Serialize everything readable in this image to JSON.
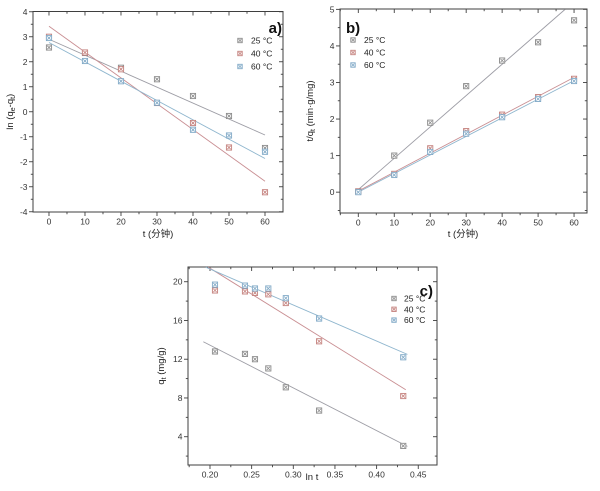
{
  "style": {
    "background": "#ffffff",
    "axis_color": "#3f3f3f",
    "tick_label_color": "#333333",
    "label_color": "#222222"
  },
  "chart_data": [
    {
      "id": "a",
      "panel_label": "a)",
      "type": "scatter",
      "xlabel": "t (分钟)",
      "ylabel_parts": [
        {
          "t": "ln (q"
        },
        {
          "t": "e",
          "sub": true
        },
        {
          "t": "-q"
        },
        {
          "t": "t",
          "sub": true
        },
        {
          "t": ")"
        }
      ],
      "xlim": [
        -4.44,
        65.0
      ],
      "ylim": [
        -4.01,
        4.01
      ],
      "xticks": {
        "values": [
          0,
          10,
          20,
          30,
          40,
          50,
          60
        ],
        "labels": [
          "0",
          "10",
          "20",
          "30",
          "40",
          "50",
          "60"
        ]
      },
      "yticks": {
        "values": [
          -4,
          -3,
          -2,
          -1,
          0,
          1,
          2,
          3,
          4
        ],
        "labels": [
          "-4",
          "-3",
          "-2",
          "-1",
          "0",
          "1",
          "2",
          "3",
          "4"
        ]
      },
      "legend_position": "top-right",
      "series": [
        {
          "name": "25 °C",
          "marker_color": "#8a8a8a",
          "line_color": "#9d9da5",
          "points": [
            [
              0,
              2.57
            ],
            [
              10,
              2.35
            ],
            [
              20,
              1.76
            ],
            [
              30,
              1.3
            ],
            [
              40,
              0.63
            ],
            [
              50,
              -0.17
            ],
            [
              60,
              -1.45
            ]
          ],
          "fit": [
            [
              0,
              2.9
            ],
            [
              60,
              -0.93
            ]
          ]
        },
        {
          "name": "40 °C",
          "marker_color": "#c4807c",
          "line_color": "#c98f93",
          "points": [
            [
              0,
              3.0
            ],
            [
              10,
              2.37
            ],
            [
              20,
              1.7
            ],
            [
              30,
              0.35
            ],
            [
              40,
              -0.45
            ],
            [
              50,
              -1.43
            ],
            [
              60,
              -3.22
            ]
          ],
          "fit": [
            [
              0,
              3.42
            ],
            [
              60,
              -2.78
            ]
          ]
        },
        {
          "name": "60 °C",
          "marker_color": "#7fa8c6",
          "line_color": "#8fb6ce",
          "points": [
            [
              0,
              2.95
            ],
            [
              10,
              2.03
            ],
            [
              20,
              1.22
            ],
            [
              30,
              0.36
            ],
            [
              40,
              -0.72
            ],
            [
              50,
              -0.95
            ],
            [
              60,
              -1.6
            ]
          ],
          "fit": [
            [
              0,
              2.77
            ],
            [
              60,
              -1.87
            ]
          ]
        }
      ]
    },
    {
      "id": "b",
      "panel_label": "b)",
      "type": "scatter",
      "xlabel": "t (分钟)",
      "ylabel_parts": [
        {
          "t": "t/q"
        },
        {
          "t": "t",
          "sub": true
        },
        {
          "t": " (min·g/mg)"
        }
      ],
      "xlim": [
        -5.09,
        63.6
      ],
      "ylim": [
        -0.57,
        5.01
      ],
      "xticks": {
        "values": [
          0,
          10,
          20,
          30,
          40,
          50,
          60
        ],
        "labels": [
          "0",
          "10",
          "20",
          "30",
          "40",
          "50",
          "60"
        ]
      },
      "yticks": {
        "values": [
          0,
          1,
          2,
          3,
          4,
          5
        ],
        "labels": [
          "0",
          "1",
          "2",
          "3",
          "4",
          "5"
        ]
      },
      "legend_position": "top-left",
      "series": [
        {
          "name": "25 °C",
          "marker_color": "#8a8a8a",
          "line_color": "#9d9da5",
          "points": [
            [
              0,
              0.02
            ],
            [
              10,
              1.0
            ],
            [
              20,
              1.9
            ],
            [
              30,
              2.9
            ],
            [
              40,
              3.6
            ],
            [
              50,
              4.1
            ],
            [
              60,
              4.7
            ]
          ],
          "fit": [
            [
              0,
              0.07
            ],
            [
              57.5,
              5.0
            ]
          ]
        },
        {
          "name": "40 °C",
          "marker_color": "#c4807c",
          "line_color": "#c98f93",
          "points": [
            [
              0,
              0.02
            ],
            [
              10,
              0.5
            ],
            [
              20,
              1.2
            ],
            [
              30,
              1.67
            ],
            [
              40,
              2.12
            ],
            [
              50,
              2.6
            ],
            [
              60,
              3.1
            ]
          ],
          "fit": [
            [
              0,
              0.03
            ],
            [
              60,
              3.14
            ]
          ]
        },
        {
          "name": "60 °C",
          "marker_color": "#7fa8c6",
          "line_color": "#8fb6ce",
          "points": [
            [
              0,
              0.0
            ],
            [
              10,
              0.47
            ],
            [
              20,
              1.1
            ],
            [
              30,
              1.6
            ],
            [
              40,
              2.05
            ],
            [
              50,
              2.55
            ],
            [
              60,
              3.04
            ]
          ],
          "fit": [
            [
              0,
              0.0
            ],
            [
              60,
              3.05
            ]
          ]
        }
      ]
    },
    {
      "id": "c",
      "panel_label": "c)",
      "type": "scatter",
      "xlabel": "ln t",
      "ylabel_parts": [
        {
          "t": "q"
        },
        {
          "t": "t",
          "sub": true
        },
        {
          "t": " (mg/g)"
        }
      ],
      "xlim": [
        0.1736,
        0.4725
      ],
      "ylim": [
        1.08,
        21.52
      ],
      "xticks": {
        "values": [
          0.2,
          0.25,
          0.3,
          0.35,
          0.4,
          0.45
        ],
        "labels": [
          "0.20",
          "0.25",
          "0.30",
          "0.35",
          "0.40",
          "0.45"
        ]
      },
      "yticks": {
        "values": [
          4,
          8,
          12,
          16,
          20
        ],
        "labels": [
          "4",
          "8",
          "12",
          "16",
          "20"
        ]
      },
      "legend_position": "right",
      "series": [
        {
          "name": "25 °C",
          "marker_color": "#8a8a8a",
          "line_color": "#9d9da5",
          "points": [
            [
              0.206,
              12.8
            ],
            [
              0.242,
              12.55
            ],
            [
              0.254,
              12.0
            ],
            [
              0.27,
              11.05
            ],
            [
              0.291,
              9.1
            ],
            [
              0.331,
              6.7
            ],
            [
              0.432,
              3.05
            ]
          ],
          "fit": [
            [
              0.192,
              13.8
            ],
            [
              0.437,
              3.0
            ]
          ]
        },
        {
          "name": "40 °C",
          "marker_color": "#c4807c",
          "line_color": "#c98f93",
          "points": [
            [
              0.206,
              19.1
            ],
            [
              0.242,
              19.0
            ],
            [
              0.254,
              18.85
            ],
            [
              0.27,
              18.7
            ],
            [
              0.291,
              17.8
            ],
            [
              0.331,
              13.85
            ],
            [
              0.432,
              8.2
            ]
          ],
          "fit": [
            [
              0.198,
              21.5
            ],
            [
              0.435,
              8.85
            ]
          ]
        },
        {
          "name": "60 °C",
          "marker_color": "#7fa8c6",
          "line_color": "#8fb6ce",
          "points": [
            [
              0.206,
              19.7
            ],
            [
              0.242,
              19.6
            ],
            [
              0.254,
              19.3
            ],
            [
              0.27,
              19.3
            ],
            [
              0.291,
              18.3
            ],
            [
              0.331,
              16.2
            ],
            [
              0.432,
              12.2
            ]
          ],
          "fit": [
            [
              0.195,
              21.5
            ],
            [
              0.437,
              12.5
            ]
          ]
        }
      ]
    }
  ]
}
